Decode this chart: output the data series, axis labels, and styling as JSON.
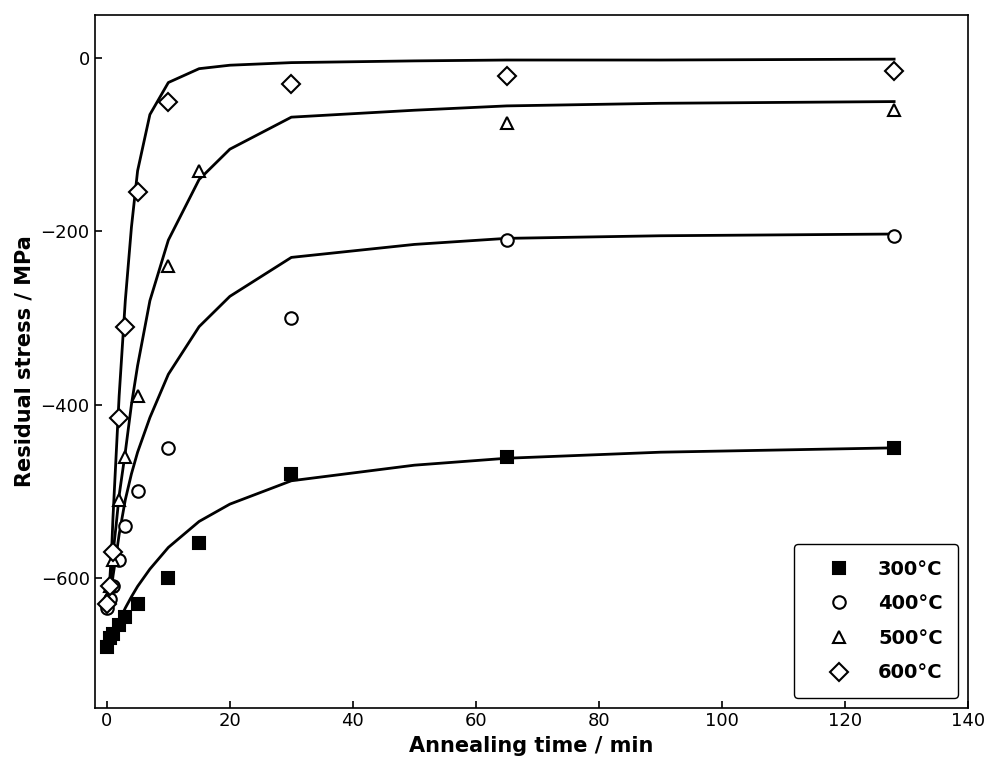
{
  "title": "",
  "xlabel": "Annealing time / min",
  "ylabel": "Residual stress / MPa",
  "xlim": [
    -2,
    140
  ],
  "ylim": [
    -750,
    50
  ],
  "xticks": [
    0,
    20,
    40,
    60,
    80,
    100,
    120,
    140
  ],
  "yticks": [
    0,
    -200,
    -400,
    -600
  ],
  "series": [
    {
      "label": "300°C",
      "marker": "s",
      "mfc": "black",
      "mec": "black",
      "x_data": [
        0,
        0.5,
        1,
        2,
        3,
        5,
        10,
        15,
        30,
        65,
        128
      ],
      "y_data": [
        -680,
        -670,
        -665,
        -655,
        -645,
        -630,
        -600,
        -560,
        -480,
        -460,
        -450
      ]
    },
    {
      "label": "400°C",
      "marker": "o",
      "mfc": "white",
      "mec": "black",
      "x_data": [
        0,
        0.5,
        1,
        2,
        3,
        5,
        10,
        30,
        65,
        128
      ],
      "y_data": [
        -635,
        -625,
        -610,
        -580,
        -540,
        -500,
        -450,
        -300,
        -210,
        -205
      ]
    },
    {
      "label": "500°C",
      "marker": "^",
      "mfc": "white",
      "mec": "black",
      "x_data": [
        0,
        0.5,
        1,
        2,
        3,
        5,
        10,
        15,
        65,
        128
      ],
      "y_data": [
        -625,
        -610,
        -580,
        -510,
        -460,
        -390,
        -240,
        -130,
        -75,
        -60
      ]
    },
    {
      "label": "600°C",
      "marker": "D",
      "mfc": "white",
      "mec": "black",
      "x_data": [
        0,
        0.5,
        1,
        2,
        3,
        5,
        10,
        30,
        65,
        128
      ],
      "y_data": [
        -630,
        -610,
        -570,
        -415,
        -310,
        -155,
        -50,
        -30,
        -20,
        -15
      ]
    }
  ],
  "fit_curves": [
    {
      "x": [
        0,
        0.3,
        0.5,
        0.8,
        1,
        1.5,
        2,
        3,
        4,
        5,
        7,
        10,
        15,
        20,
        30,
        50,
        65,
        90,
        128
      ],
      "y": [
        -682,
        -678,
        -675,
        -672,
        -668,
        -660,
        -650,
        -635,
        -622,
        -610,
        -590,
        -565,
        -535,
        -515,
        -488,
        -470,
        -462,
        -455,
        -450
      ]
    },
    {
      "x": [
        0,
        0.3,
        0.5,
        0.8,
        1,
        1.5,
        2,
        3,
        4,
        5,
        7,
        10,
        15,
        20,
        30,
        50,
        65,
        90,
        128
      ],
      "y": [
        -638,
        -630,
        -622,
        -610,
        -598,
        -575,
        -550,
        -510,
        -480,
        -455,
        -415,
        -365,
        -310,
        -275,
        -230,
        -215,
        -208,
        -205,
        -203
      ]
    },
    {
      "x": [
        0,
        0.3,
        0.5,
        0.8,
        1,
        1.5,
        2,
        3,
        4,
        5,
        7,
        10,
        15,
        20,
        30,
        50,
        65,
        90,
        128
      ],
      "y": [
        -628,
        -618,
        -608,
        -590,
        -572,
        -540,
        -505,
        -455,
        -400,
        -355,
        -280,
        -210,
        -140,
        -105,
        -68,
        -60,
        -55,
        -52,
        -50
      ]
    },
    {
      "x": [
        0,
        0.3,
        0.5,
        0.8,
        1,
        1.5,
        2,
        3,
        4,
        5,
        7,
        10,
        15,
        20,
        30,
        50,
        65,
        90,
        128
      ],
      "y": [
        -632,
        -618,
        -600,
        -565,
        -530,
        -460,
        -390,
        -280,
        -195,
        -130,
        -65,
        -28,
        -12,
        -8,
        -5,
        -3,
        -2,
        -2,
        -1
      ]
    }
  ],
  "line_color": "black",
  "line_width": 2.0,
  "marker_size": 9,
  "legend_loc": "lower right",
  "legend_fontsize": 14,
  "axis_fontsize": 15,
  "tick_fontsize": 13,
  "background_color": "#ffffff"
}
